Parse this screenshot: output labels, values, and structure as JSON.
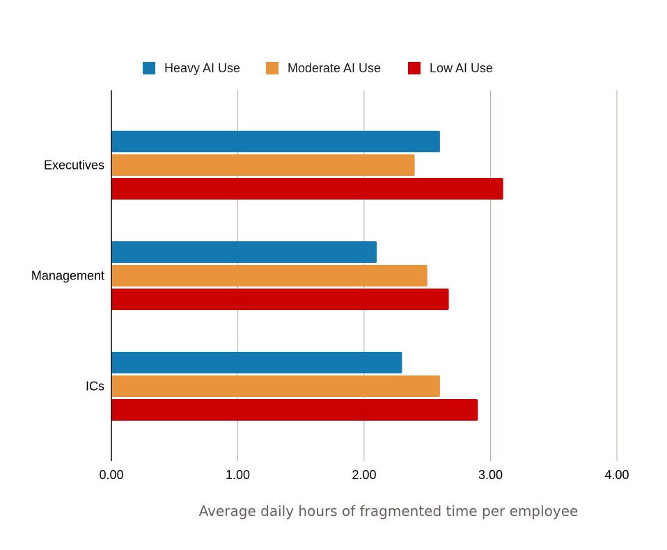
{
  "chart_data": {
    "type": "bar",
    "orientation": "horizontal",
    "title": "",
    "xlabel": "Average daily hours of fragmented time per employee",
    "ylabel": "",
    "categories": [
      "Executives",
      "Management",
      "ICs"
    ],
    "series": [
      {
        "name": "Heavy AI Use",
        "color": "#1479b1",
        "values": [
          2.6,
          2.1,
          2.3
        ]
      },
      {
        "name": "Moderate AI Use",
        "color": "#e7943d",
        "values": [
          2.4,
          2.5,
          2.6
        ]
      },
      {
        "name": "Low AI Use",
        "color": "#cc0000",
        "values": [
          3.1,
          2.67,
          2.9
        ]
      }
    ],
    "xlim": [
      0,
      4
    ],
    "xticks": [
      "0.00",
      "1.00",
      "2.00",
      "3.00",
      "4.00"
    ],
    "grid": true,
    "legend_position": "top"
  }
}
